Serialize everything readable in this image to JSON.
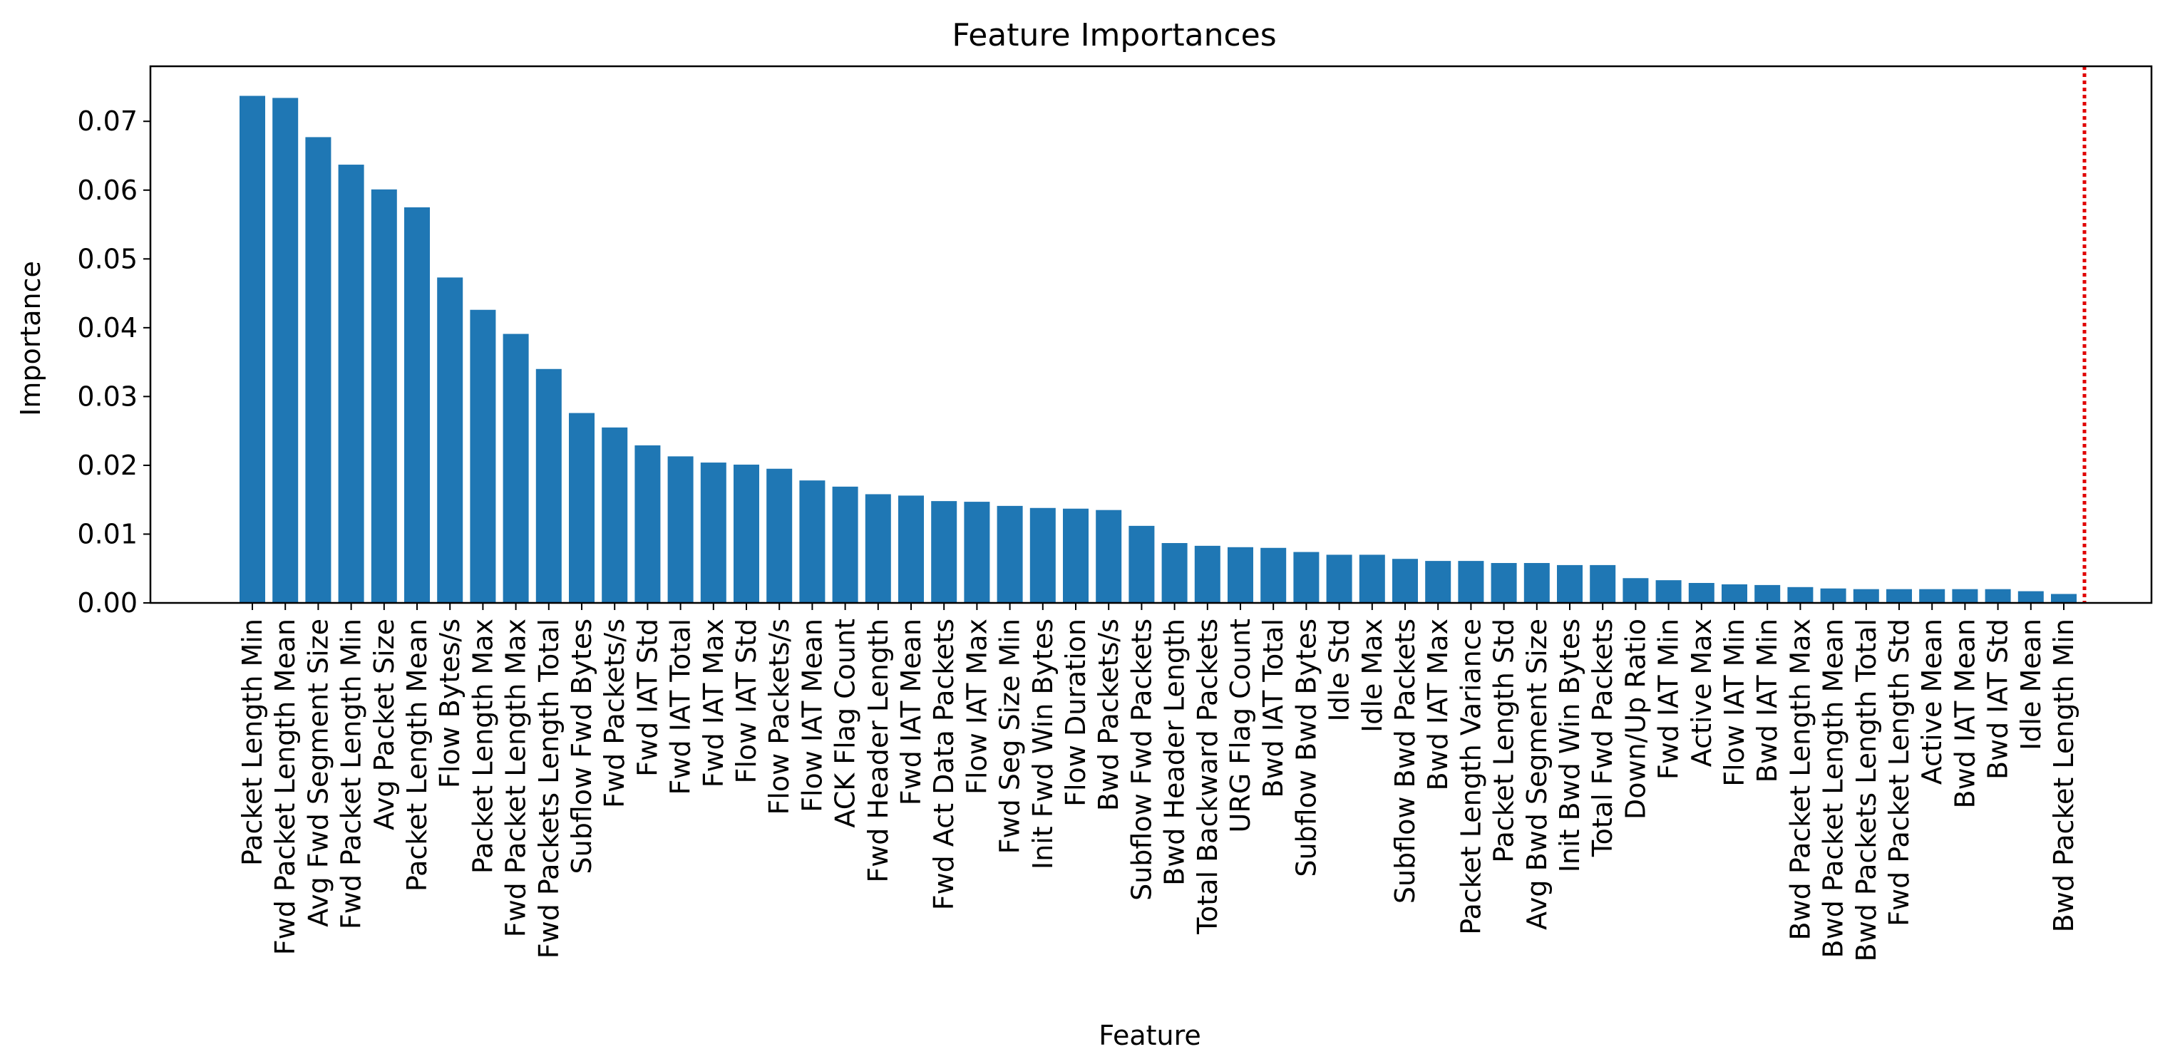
{
  "chart_data": {
    "type": "bar",
    "title": "Feature Importances",
    "xlabel": "Feature",
    "ylabel": "Importance",
    "ylim": [
      0,
      0.078
    ],
    "yticks": [
      "0.00",
      "0.01",
      "0.02",
      "0.03",
      "0.04",
      "0.05",
      "0.06",
      "0.07"
    ],
    "grid": false,
    "bar_color": "#1f77b4",
    "reference_line": {
      "style": "dotted",
      "color": "#e00000"
    },
    "categories": [
      "Packet Length Min",
      "Fwd Packet Length Mean",
      "Avg Fwd Segment Size",
      "Fwd Packet Length Min",
      "Avg Packet Size",
      "Packet Length Mean",
      "Flow Bytes/s",
      "Packet Length Max",
      "Fwd Packet Length Max",
      "Fwd Packets Length Total",
      "Subflow Fwd Bytes",
      "Fwd Packets/s",
      "Fwd IAT Std",
      "Fwd IAT Total",
      "Fwd IAT Max",
      "Flow IAT Std",
      "Flow Packets/s",
      "Flow IAT Mean",
      "ACK Flag Count",
      "Fwd Header Length",
      "Fwd IAT Mean",
      "Fwd Act Data Packets",
      "Flow IAT Max",
      "Fwd Seg Size Min",
      "Init Fwd Win Bytes",
      "Flow Duration",
      "Bwd Packets/s",
      "Subflow Fwd Packets",
      "Bwd Header Length",
      "Total Backward Packets",
      "URG Flag Count",
      "Bwd IAT Total",
      "Subflow Bwd Bytes",
      "Idle Std",
      "Idle Max",
      "Subflow Bwd Packets",
      "Bwd IAT Max",
      "Packet Length Variance",
      "Packet Length Std",
      "Avg Bwd Segment Size",
      "Init Bwd Win Bytes",
      "Total Fwd Packets",
      "Down/Up Ratio",
      "Fwd IAT Min",
      "Active Max",
      "Flow IAT Min",
      "Bwd IAT Min",
      "Bwd Packet Length Max",
      "Bwd Packet Length Mean",
      "Bwd Packets Length Total",
      "Fwd Packet Length Std",
      "Active Mean",
      "Bwd IAT Mean",
      "Bwd IAT Std",
      "Idle Mean",
      "Bwd Packet Length Min"
    ],
    "values": [
      0.0737,
      0.0734,
      0.0677,
      0.0637,
      0.0601,
      0.0575,
      0.0473,
      0.0426,
      0.0391,
      0.034,
      0.0276,
      0.0255,
      0.0229,
      0.0213,
      0.0204,
      0.0201,
      0.0195,
      0.0178,
      0.0169,
      0.0158,
      0.0156,
      0.0148,
      0.0147,
      0.0141,
      0.0138,
      0.0137,
      0.0135,
      0.0112,
      0.0087,
      0.0083,
      0.0081,
      0.008,
      0.0074,
      0.007,
      0.007,
      0.0064,
      0.0061,
      0.0061,
      0.0058,
      0.0058,
      0.0055,
      0.0055,
      0.0036,
      0.0033,
      0.0029,
      0.0027,
      0.0026,
      0.0023,
      0.0021,
      0.002,
      0.002,
      0.002,
      0.002,
      0.002,
      0.0017,
      0.0013
    ]
  }
}
